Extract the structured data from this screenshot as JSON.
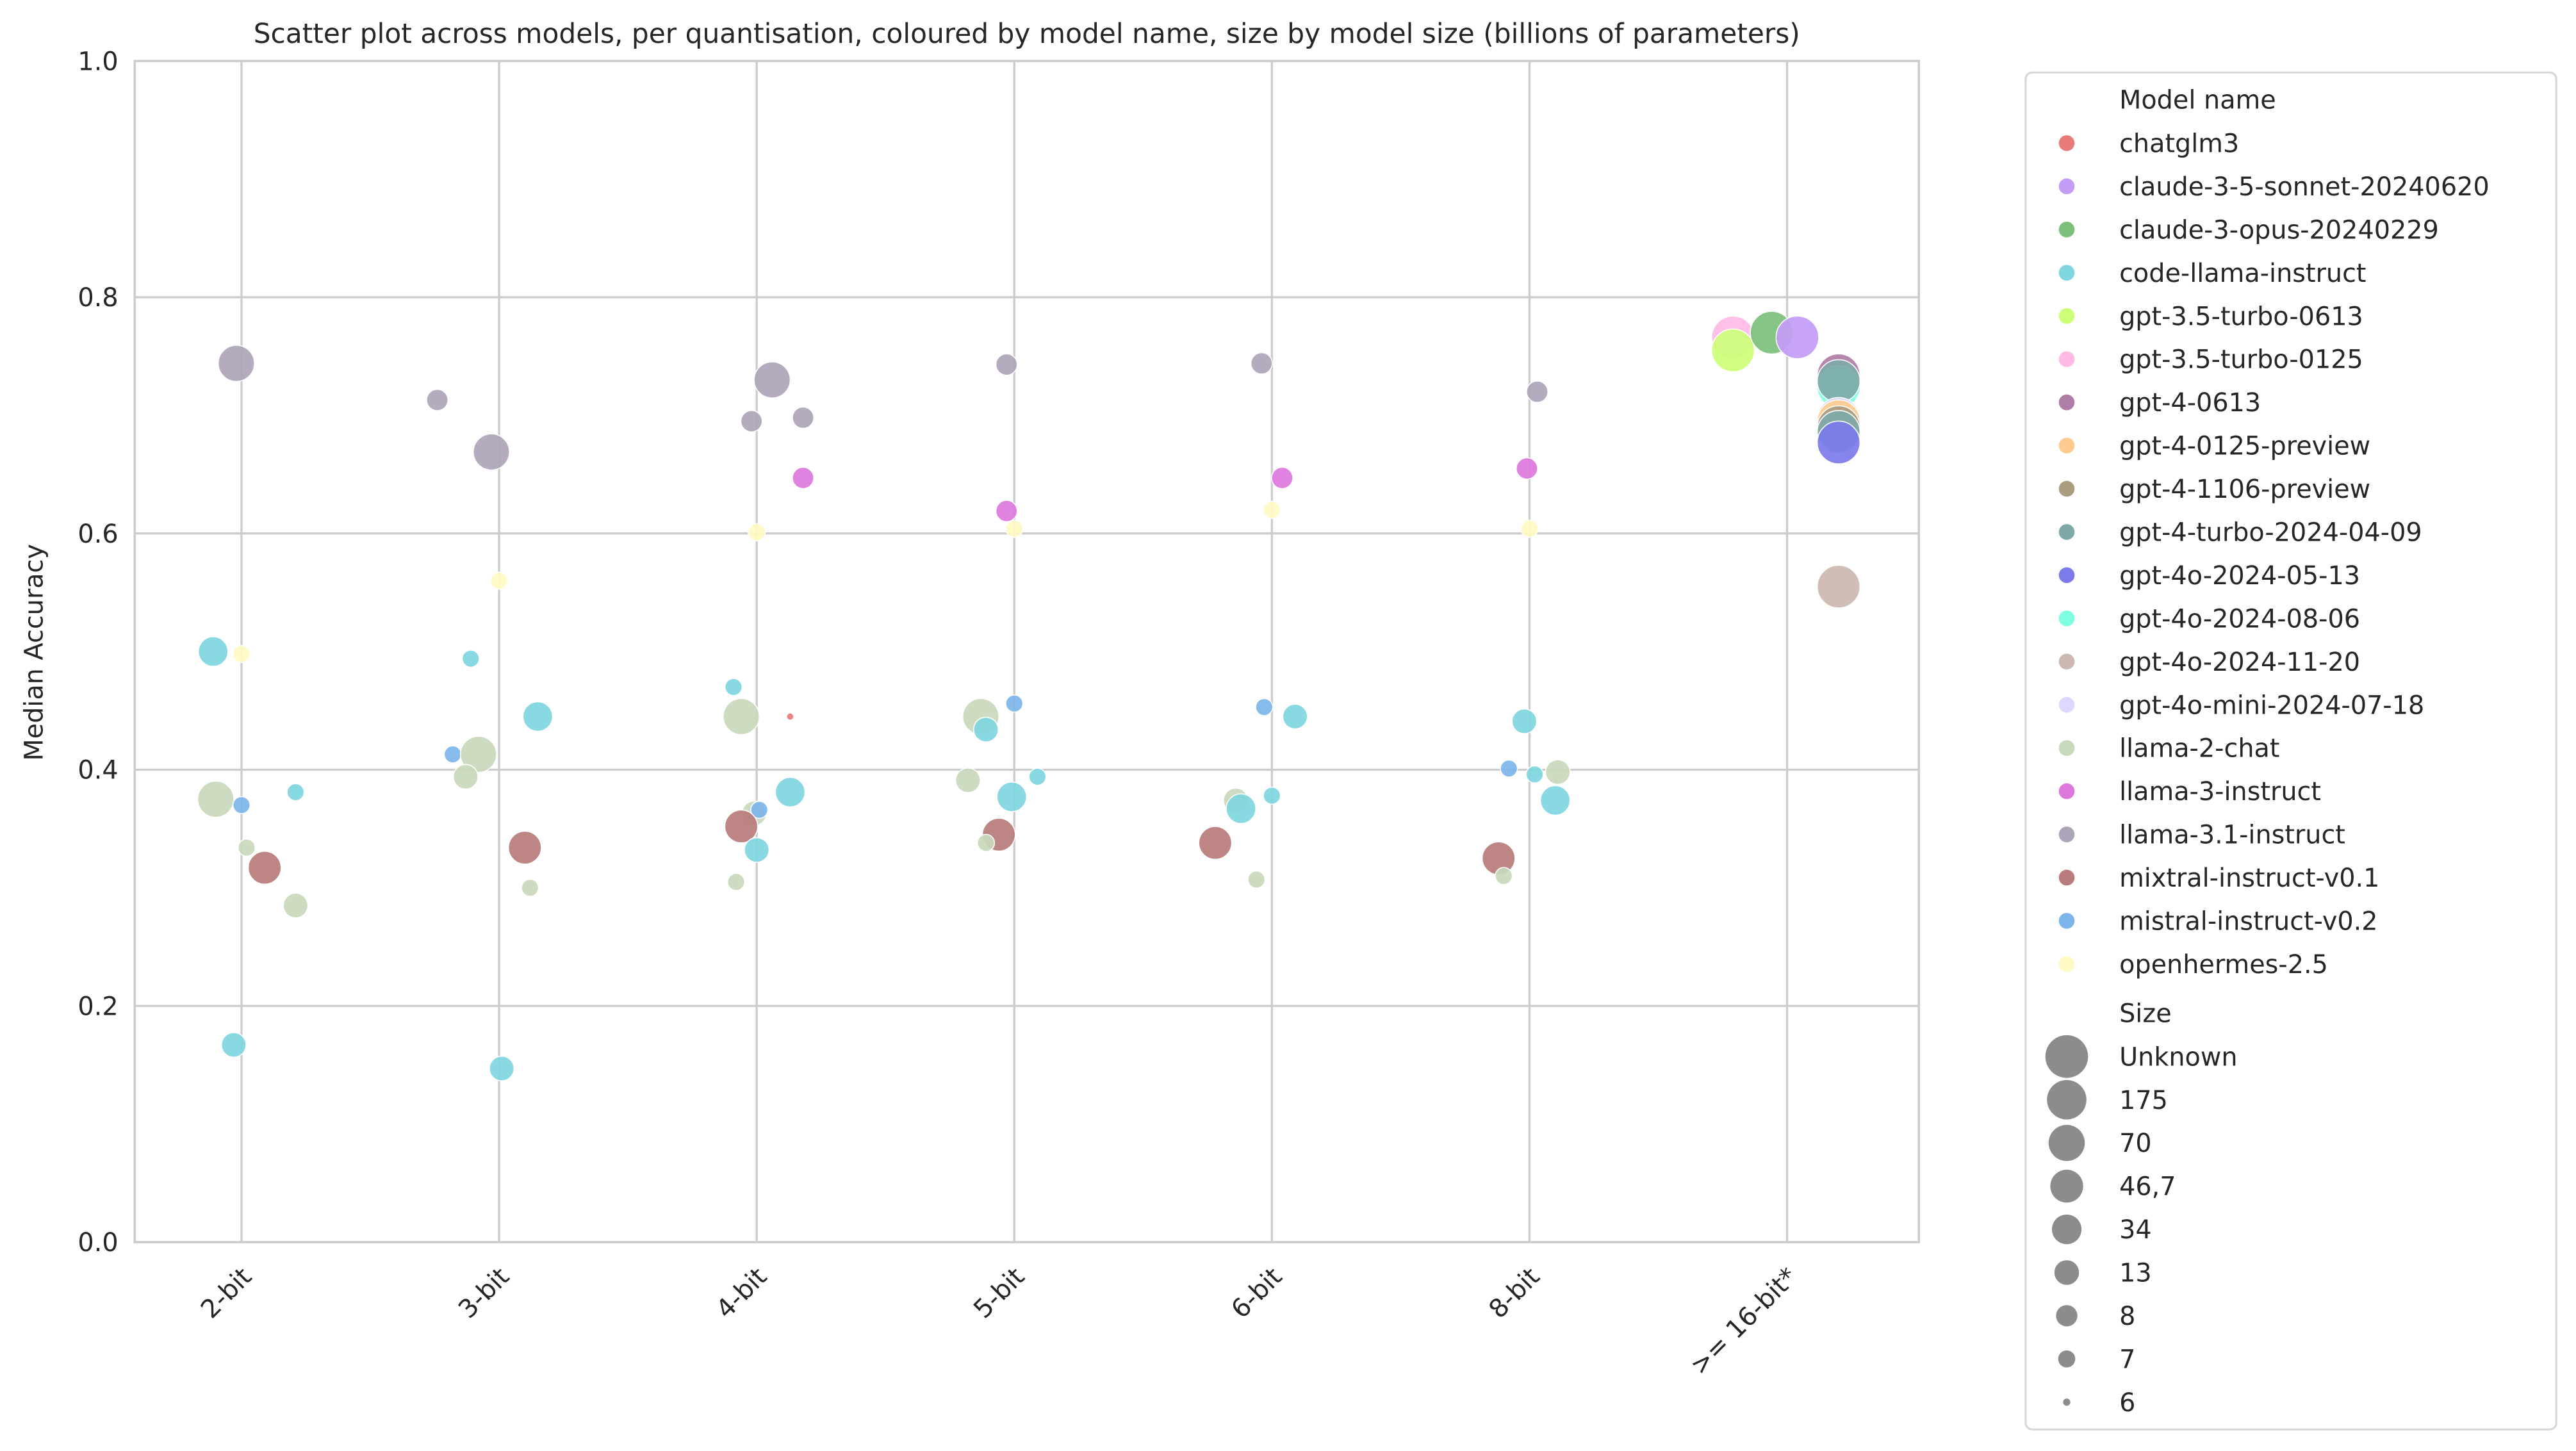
{
  "chart_data": {
    "type": "scatter",
    "title": "Scatter plot across models, per quantisation, coloured by model name, size by model size (billions of parameters)",
    "xlabel": "",
    "ylabel": "Median Accuracy",
    "ylim": [
      0,
      1
    ],
    "yticks": [
      "0.0",
      "0.2",
      "0.4",
      "0.6",
      "0.8",
      "1.0"
    ],
    "categories": [
      "2-bit",
      "3-bit",
      "4-bit",
      "5-bit",
      "6-bit",
      "8-bit",
      ">= 16-bit*"
    ],
    "grid": true,
    "legend_placement": "outside-right",
    "legend": {
      "hue_title": "Model name",
      "size_title": "Size",
      "models": [
        {
          "name": "chatglm3",
          "color": "#e87b7b"
        },
        {
          "name": "claude-3-5-sonnet-20240620",
          "color": "#c39cf7"
        },
        {
          "name": "claude-3-opus-20240229",
          "color": "#7cc07b"
        },
        {
          "name": "code-llama-instruct",
          "color": "#7fd6e0"
        },
        {
          "name": "gpt-3.5-turbo-0613",
          "color": "#ccff77"
        },
        {
          "name": "gpt-3.5-turbo-0125",
          "color": "#ffbbe6"
        },
        {
          "name": "gpt-4-0613",
          "color": "#b07da7"
        },
        {
          "name": "gpt-4-0125-preview",
          "color": "#ffcc8f"
        },
        {
          "name": "gpt-4-1106-preview",
          "color": "#a99c7f"
        },
        {
          "name": "gpt-4-turbo-2024-04-09",
          "color": "#7ea9a9"
        },
        {
          "name": "gpt-4o-2024-05-13",
          "color": "#7b7bea"
        },
        {
          "name": "gpt-4o-2024-08-06",
          "color": "#7dffe3"
        },
        {
          "name": "gpt-4o-2024-11-20",
          "color": "#ccb8b0"
        },
        {
          "name": "gpt-4o-mini-2024-07-18",
          "color": "#dcd8ff"
        },
        {
          "name": "llama-2-chat",
          "color": "#c9d9bb"
        },
        {
          "name": "llama-3-instruct",
          "color": "#dd77dd"
        },
        {
          "name": "llama-3.1-instruct",
          "color": "#aea4ba"
        },
        {
          "name": "mixtral-instruct-v0.1",
          "color": "#b97b7b"
        },
        {
          "name": "mistral-instruct-v0.2",
          "color": "#7db5ea"
        },
        {
          "name": "openhermes-2.5",
          "color": "#fffac3"
        }
      ],
      "sizes": [
        "Unknown",
        "175",
        "70",
        "46,7",
        "34",
        "13",
        "8",
        "7",
        "6"
      ]
    },
    "points": [
      {
        "model": "llama-3.1-instruct",
        "x": -0.02,
        "y": 0.744,
        "size": "70"
      },
      {
        "model": "code-llama-instruct",
        "x": -0.11,
        "y": 0.5,
        "size": "34"
      },
      {
        "model": "openhermes-2.5",
        "x": 0.0,
        "y": 0.498,
        "size": "7"
      },
      {
        "model": "llama-2-chat",
        "x": -0.1,
        "y": 0.375,
        "size": "70"
      },
      {
        "model": "mistral-instruct-v0.2",
        "x": 0.0,
        "y": 0.37,
        "size": "7"
      },
      {
        "model": "code-llama-instruct",
        "x": 0.21,
        "y": 0.381,
        "size": "7"
      },
      {
        "model": "llama-2-chat",
        "x": 0.02,
        "y": 0.334,
        "size": "7"
      },
      {
        "model": "mixtral-instruct-v0.1",
        "x": 0.09,
        "y": 0.317,
        "size": "46,7"
      },
      {
        "model": "llama-2-chat",
        "x": 0.21,
        "y": 0.285,
        "size": "13"
      },
      {
        "model": "code-llama-instruct",
        "x": -0.03,
        "y": 0.167,
        "size": "13"
      },
      {
        "model": "llama-3.1-instruct",
        "x": 0.76,
        "y": 0.713,
        "size": "8"
      },
      {
        "model": "llama-3.1-instruct",
        "x": 0.97,
        "y": 0.669,
        "size": "70"
      },
      {
        "model": "openhermes-2.5",
        "x": 1.0,
        "y": 0.56,
        "size": "7"
      },
      {
        "model": "code-llama-instruct",
        "x": 0.89,
        "y": 0.494,
        "size": "7"
      },
      {
        "model": "code-llama-instruct",
        "x": 1.15,
        "y": 0.445,
        "size": "34"
      },
      {
        "model": "mistral-instruct-v0.2",
        "x": 0.82,
        "y": 0.413,
        "size": "7"
      },
      {
        "model": "llama-2-chat",
        "x": 0.92,
        "y": 0.413,
        "size": "70"
      },
      {
        "model": "llama-2-chat",
        "x": 0.87,
        "y": 0.394,
        "size": "13"
      },
      {
        "model": "mixtral-instruct-v0.1",
        "x": 1.1,
        "y": 0.334,
        "size": "46,7"
      },
      {
        "model": "llama-2-chat",
        "x": 1.12,
        "y": 0.3,
        "size": "7"
      },
      {
        "model": "code-llama-instruct",
        "x": 1.01,
        "y": 0.147,
        "size": "13"
      },
      {
        "model": "llama-3.1-instruct",
        "x": 2.06,
        "y": 0.73,
        "size": "70"
      },
      {
        "model": "llama-3.1-instruct",
        "x": 1.98,
        "y": 0.695,
        "size": "8"
      },
      {
        "model": "llama-3.1-instruct",
        "x": 2.18,
        "y": 0.698,
        "size": "8"
      },
      {
        "model": "llama-3-instruct",
        "x": 2.18,
        "y": 0.647,
        "size": "8"
      },
      {
        "model": "openhermes-2.5",
        "x": 2.0,
        "y": 0.601,
        "size": "7"
      },
      {
        "model": "code-llama-instruct",
        "x": 1.91,
        "y": 0.47,
        "size": "7"
      },
      {
        "model": "llama-2-chat",
        "x": 1.94,
        "y": 0.445,
        "size": "70"
      },
      {
        "model": "chatglm3",
        "x": 2.13,
        "y": 0.445,
        "size": "6"
      },
      {
        "model": "code-llama-instruct",
        "x": 2.13,
        "y": 0.381,
        "size": "34"
      },
      {
        "model": "llama-2-chat",
        "x": 1.99,
        "y": 0.363,
        "size": "13"
      },
      {
        "model": "mistral-instruct-v0.2",
        "x": 2.01,
        "y": 0.366,
        "size": "7"
      },
      {
        "model": "mixtral-instruct-v0.1",
        "x": 1.94,
        "y": 0.352,
        "size": "46,7"
      },
      {
        "model": "code-llama-instruct",
        "x": 2.0,
        "y": 0.332,
        "size": "13"
      },
      {
        "model": "llama-2-chat",
        "x": 1.92,
        "y": 0.305,
        "size": "7"
      },
      {
        "model": "llama-3.1-instruct",
        "x": 2.97,
        "y": 0.743,
        "size": "8"
      },
      {
        "model": "llama-3-instruct",
        "x": 2.97,
        "y": 0.619,
        "size": "8"
      },
      {
        "model": "openhermes-2.5",
        "x": 3.0,
        "y": 0.604,
        "size": "7"
      },
      {
        "model": "mistral-instruct-v0.2",
        "x": 3.0,
        "y": 0.456,
        "size": "7"
      },
      {
        "model": "llama-2-chat",
        "x": 2.87,
        "y": 0.445,
        "size": "70"
      },
      {
        "model": "code-llama-instruct",
        "x": 2.89,
        "y": 0.434,
        "size": "13"
      },
      {
        "model": "code-llama-instruct",
        "x": 3.09,
        "y": 0.394,
        "size": "7"
      },
      {
        "model": "llama-2-chat",
        "x": 2.82,
        "y": 0.391,
        "size": "13"
      },
      {
        "model": "code-llama-instruct",
        "x": 2.99,
        "y": 0.377,
        "size": "34"
      },
      {
        "model": "mixtral-instruct-v0.1",
        "x": 2.94,
        "y": 0.345,
        "size": "46,7"
      },
      {
        "model": "llama-2-chat",
        "x": 2.89,
        "y": 0.338,
        "size": "7"
      },
      {
        "model": "llama-3.1-instruct",
        "x": 3.96,
        "y": 0.744,
        "size": "8"
      },
      {
        "model": "llama-3-instruct",
        "x": 4.04,
        "y": 0.647,
        "size": "8"
      },
      {
        "model": "openhermes-2.5",
        "x": 4.0,
        "y": 0.62,
        "size": "7"
      },
      {
        "model": "mistral-instruct-v0.2",
        "x": 3.97,
        "y": 0.453,
        "size": "7"
      },
      {
        "model": "code-llama-instruct",
        "x": 4.09,
        "y": 0.445,
        "size": "13"
      },
      {
        "model": "llama-2-chat",
        "x": 3.86,
        "y": 0.374,
        "size": "13"
      },
      {
        "model": "code-llama-instruct",
        "x": 3.88,
        "y": 0.367,
        "size": "34"
      },
      {
        "model": "code-llama-instruct",
        "x": 4.0,
        "y": 0.378,
        "size": "7"
      },
      {
        "model": "mixtral-instruct-v0.1",
        "x": 3.78,
        "y": 0.338,
        "size": "46,7"
      },
      {
        "model": "llama-2-chat",
        "x": 3.94,
        "y": 0.307,
        "size": "7"
      },
      {
        "model": "llama-3.1-instruct",
        "x": 5.03,
        "y": 0.72,
        "size": "8"
      },
      {
        "model": "llama-3-instruct",
        "x": 4.99,
        "y": 0.655,
        "size": "8"
      },
      {
        "model": "openhermes-2.5",
        "x": 5.0,
        "y": 0.604,
        "size": "7"
      },
      {
        "model": "code-llama-instruct",
        "x": 4.98,
        "y": 0.441,
        "size": "13"
      },
      {
        "model": "mistral-instruct-v0.2",
        "x": 4.92,
        "y": 0.401,
        "size": "7"
      },
      {
        "model": "code-llama-instruct",
        "x": 5.02,
        "y": 0.396,
        "size": "7"
      },
      {
        "model": "llama-2-chat",
        "x": 5.11,
        "y": 0.398,
        "size": "13"
      },
      {
        "model": "code-llama-instruct",
        "x": 5.1,
        "y": 0.374,
        "size": "34"
      },
      {
        "model": "mixtral-instruct-v0.1",
        "x": 4.88,
        "y": 0.325,
        "size": "46,7"
      },
      {
        "model": "llama-2-chat",
        "x": 4.9,
        "y": 0.31,
        "size": "7"
      },
      {
        "model": "gpt-3.5-turbo-0125",
        "x": 5.79,
        "y": 0.766,
        "size": "Unknown"
      },
      {
        "model": "gpt-3.5-turbo-0613",
        "x": 5.79,
        "y": 0.755,
        "size": "Unknown"
      },
      {
        "model": "claude-3-opus-20240229",
        "x": 5.94,
        "y": 0.77,
        "size": "Unknown"
      },
      {
        "model": "claude-3-5-sonnet-20240620",
        "x": 6.04,
        "y": 0.766,
        "size": "Unknown"
      },
      {
        "model": "gpt-4-0613",
        "x": 6.2,
        "y": 0.734,
        "size": "Unknown"
      },
      {
        "model": "gpt-4o-2024-08-06",
        "x": 6.2,
        "y": 0.724,
        "size": "Unknown"
      },
      {
        "model": "gpt-4-turbo-2024-04-09",
        "x": 6.2,
        "y": 0.729,
        "size": "Unknown"
      },
      {
        "model": "gpt-4o-mini-2024-07-18",
        "x": 6.2,
        "y": 0.697,
        "size": "Unknown"
      },
      {
        "model": "gpt-4-0125-preview",
        "x": 6.2,
        "y": 0.695,
        "size": "Unknown"
      },
      {
        "model": "gpt-4-1106-preview",
        "x": 6.2,
        "y": 0.69,
        "size": "Unknown"
      },
      {
        "model": "gpt-4-turbo-2024-04-09",
        "x": 6.2,
        "y": 0.686,
        "size": "Unknown"
      },
      {
        "model": "gpt-4o-2024-05-13",
        "x": 6.2,
        "y": 0.677,
        "size": "Unknown"
      },
      {
        "model": "gpt-4o-2024-11-20",
        "x": 6.2,
        "y": 0.555,
        "size": "Unknown"
      }
    ]
  }
}
